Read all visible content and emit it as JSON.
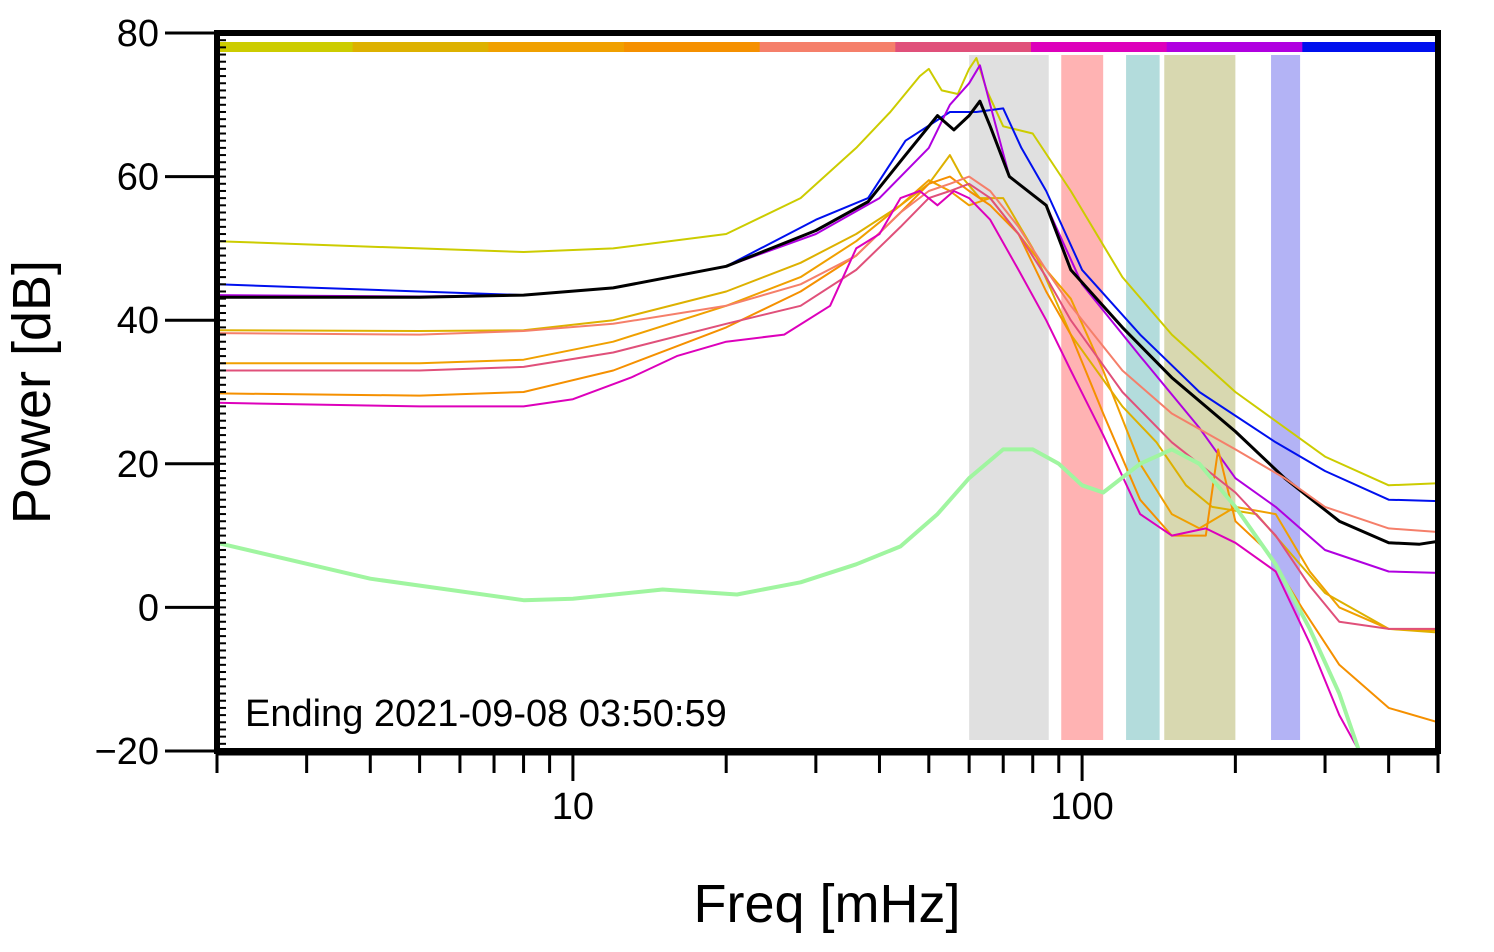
{
  "chart_data": {
    "type": "line",
    "title": "",
    "xlabel": "Freq [mHz]",
    "ylabel": "Power [dB]",
    "xscale": "log",
    "xlim": [
      2,
      500
    ],
    "ylim": [
      -20,
      80
    ],
    "x_major_ticks": [
      10,
      100
    ],
    "x_major_tick_labels": [
      "10",
      "100"
    ],
    "y_ticks": [
      -20,
      0,
      20,
      40,
      60,
      80
    ],
    "y_tick_labels": [
      "−20",
      "0",
      "20",
      "40",
      "60",
      "80"
    ],
    "annotation": "Ending 2021-09-08 03:50:59",
    "colors": {
      "lime": "#cccc00",
      "gold": "#ddb100",
      "orange1": "#f0a000",
      "orange2": "#f59000",
      "salmon": "#f57f6a",
      "rose": "#e0507a",
      "magenta": "#dd00bb",
      "purple": "#b000e0",
      "blue": "#0010ee",
      "black": "#000000",
      "noise": "#a0f5a0"
    },
    "time_bar": [
      "#cccc00",
      "#ddb100",
      "#f0a000",
      "#f59000",
      "#f57f6a",
      "#e0507a",
      "#dd00bb",
      "#b000e0",
      "#0010ee"
    ],
    "bands": [
      {
        "x0": 60,
        "x1": 86,
        "color": "#e0e0e0"
      },
      {
        "x0": 91,
        "x1": 110,
        "color": "#ffb3b3"
      },
      {
        "x0": 122,
        "x1": 142,
        "color": "#b3dcdc"
      },
      {
        "x0": 145,
        "x1": 200,
        "color": "#d8d8b0"
      },
      {
        "x0": 235,
        "x1": 268,
        "color": "#b3b3f5"
      }
    ],
    "series": [
      {
        "name": "lime",
        "color": "#cccc00",
        "width": 2,
        "points": [
          [
            2,
            51
          ],
          [
            5,
            50
          ],
          [
            8,
            49.5
          ],
          [
            12,
            50
          ],
          [
            20,
            52
          ],
          [
            28,
            57
          ],
          [
            36,
            64
          ],
          [
            42,
            69
          ],
          [
            48,
            74
          ],
          [
            50,
            75
          ],
          [
            53,
            72
          ],
          [
            57,
            71.5
          ],
          [
            60,
            75
          ],
          [
            62,
            76.5
          ],
          [
            65,
            72
          ],
          [
            70,
            67
          ],
          [
            80,
            66
          ],
          [
            95,
            58
          ],
          [
            120,
            46
          ],
          [
            150,
            38
          ],
          [
            200,
            30
          ],
          [
            300,
            21
          ],
          [
            400,
            17
          ],
          [
            500,
            17.3
          ]
        ]
      },
      {
        "name": "blue",
        "color": "#0010ee",
        "width": 2,
        "points": [
          [
            2,
            45
          ],
          [
            5,
            44
          ],
          [
            8,
            43.5
          ],
          [
            12,
            44.5
          ],
          [
            20,
            47.5
          ],
          [
            30,
            54
          ],
          [
            38,
            57
          ],
          [
            45,
            65
          ],
          [
            55,
            69
          ],
          [
            62,
            69
          ],
          [
            70,
            69.5
          ],
          [
            76,
            64
          ],
          [
            85,
            58
          ],
          [
            100,
            47
          ],
          [
            130,
            38
          ],
          [
            170,
            30
          ],
          [
            240,
            23
          ],
          [
            300,
            19
          ],
          [
            400,
            15
          ],
          [
            500,
            14.8
          ]
        ]
      },
      {
        "name": "purple",
        "color": "#b000e0",
        "width": 2,
        "points": [
          [
            2,
            43.5
          ],
          [
            5,
            43.3
          ],
          [
            8,
            43.5
          ],
          [
            12,
            44.5
          ],
          [
            20,
            47.5
          ],
          [
            30,
            52
          ],
          [
            40,
            57
          ],
          [
            50,
            64
          ],
          [
            55,
            70
          ],
          [
            60,
            73
          ],
          [
            63,
            75.5
          ],
          [
            66,
            70
          ],
          [
            72,
            60
          ],
          [
            85,
            56
          ],
          [
            100,
            45
          ],
          [
            130,
            35
          ],
          [
            170,
            25
          ],
          [
            200,
            18
          ],
          [
            240,
            14
          ],
          [
            300,
            8
          ],
          [
            400,
            5
          ],
          [
            500,
            4.8
          ]
        ]
      },
      {
        "name": "black",
        "color": "#000000",
        "width": 3,
        "points": [
          [
            2,
            43.2
          ],
          [
            5,
            43.2
          ],
          [
            8,
            43.5
          ],
          [
            12,
            44.5
          ],
          [
            20,
            47.5
          ],
          [
            30,
            52.5
          ],
          [
            38,
            56.5
          ],
          [
            45,
            63
          ],
          [
            52,
            68.5
          ],
          [
            56,
            66.5
          ],
          [
            60,
            68.5
          ],
          [
            63,
            70.5
          ],
          [
            66,
            67
          ],
          [
            72,
            60
          ],
          [
            85,
            56
          ],
          [
            95,
            47
          ],
          [
            120,
            39
          ],
          [
            150,
            32
          ],
          [
            200,
            24.5
          ],
          [
            250,
            18
          ],
          [
            320,
            12
          ],
          [
            400,
            9
          ],
          [
            460,
            8.8
          ],
          [
            500,
            9.2
          ]
        ]
      },
      {
        "name": "gold",
        "color": "#ddb100",
        "width": 2,
        "points": [
          [
            2,
            38.6
          ],
          [
            5,
            38.5
          ],
          [
            8,
            38.6
          ],
          [
            12,
            40
          ],
          [
            20,
            44
          ],
          [
            28,
            48
          ],
          [
            36,
            52
          ],
          [
            44,
            56
          ],
          [
            50,
            59
          ],
          [
            55,
            63
          ],
          [
            58,
            60
          ],
          [
            63,
            57
          ],
          [
            70,
            57
          ],
          [
            80,
            50
          ],
          [
            95,
            38
          ],
          [
            120,
            28
          ],
          [
            140,
            23
          ],
          [
            160,
            17
          ],
          [
            180,
            14
          ],
          [
            220,
            13
          ],
          [
            300,
            2
          ],
          [
            400,
            -3
          ],
          [
            500,
            -3.5
          ]
        ]
      },
      {
        "name": "orange1",
        "color": "#f0a000",
        "width": 2,
        "points": [
          [
            2,
            34
          ],
          [
            5,
            34
          ],
          [
            8,
            34.5
          ],
          [
            12,
            37
          ],
          [
            20,
            42
          ],
          [
            28,
            46
          ],
          [
            36,
            51
          ],
          [
            44,
            56
          ],
          [
            50,
            59.5
          ],
          [
            55,
            58
          ],
          [
            60,
            56
          ],
          [
            66,
            57
          ],
          [
            75,
            52
          ],
          [
            85,
            47
          ],
          [
            95,
            43
          ],
          [
            110,
            33
          ],
          [
            130,
            20
          ],
          [
            150,
            13
          ],
          [
            170,
            11
          ],
          [
            200,
            14
          ],
          [
            240,
            13
          ],
          [
            280,
            5
          ],
          [
            320,
            0
          ],
          [
            400,
            -3
          ],
          [
            500,
            -3.2
          ]
        ]
      },
      {
        "name": "orange2",
        "color": "#f59000",
        "width": 2,
        "points": [
          [
            2,
            29.8
          ],
          [
            5,
            29.5
          ],
          [
            8,
            30
          ],
          [
            12,
            33
          ],
          [
            20,
            39
          ],
          [
            28,
            44
          ],
          [
            36,
            49
          ],
          [
            44,
            55
          ],
          [
            50,
            59
          ],
          [
            55,
            60
          ],
          [
            60,
            58
          ],
          [
            66,
            56
          ],
          [
            75,
            52
          ],
          [
            85,
            44
          ],
          [
            95,
            38
          ],
          [
            110,
            27
          ],
          [
            130,
            15
          ],
          [
            150,
            10
          ],
          [
            175,
            10
          ],
          [
            185,
            22
          ],
          [
            200,
            12
          ],
          [
            230,
            8
          ],
          [
            270,
            0
          ],
          [
            320,
            -8
          ],
          [
            400,
            -14
          ],
          [
            500,
            -16
          ]
        ]
      },
      {
        "name": "salmon",
        "color": "#f57f6a",
        "width": 2,
        "points": [
          [
            2,
            38.2
          ],
          [
            5,
            38
          ],
          [
            8,
            38.5
          ],
          [
            12,
            39.5
          ],
          [
            20,
            42
          ],
          [
            28,
            45
          ],
          [
            36,
            49
          ],
          [
            44,
            55
          ],
          [
            50,
            58
          ],
          [
            55,
            59
          ],
          [
            60,
            60
          ],
          [
            66,
            58
          ],
          [
            75,
            53
          ],
          [
            85,
            47
          ],
          [
            95,
            42
          ],
          [
            120,
            33
          ],
          [
            150,
            27
          ],
          [
            200,
            22
          ],
          [
            250,
            18
          ],
          [
            300,
            14
          ],
          [
            400,
            11
          ],
          [
            500,
            10.5
          ]
        ]
      },
      {
        "name": "rose",
        "color": "#e0507a",
        "width": 2,
        "points": [
          [
            2,
            33
          ],
          [
            5,
            33
          ],
          [
            8,
            33.5
          ],
          [
            12,
            35.5
          ],
          [
            20,
            39.5
          ],
          [
            28,
            42
          ],
          [
            36,
            47
          ],
          [
            44,
            53
          ],
          [
            50,
            57
          ],
          [
            55,
            58
          ],
          [
            60,
            59
          ],
          [
            66,
            57
          ],
          [
            75,
            52
          ],
          [
            85,
            46
          ],
          [
            95,
            40
          ],
          [
            120,
            30
          ],
          [
            150,
            23
          ],
          [
            200,
            16
          ],
          [
            240,
            10
          ],
          [
            280,
            3
          ],
          [
            320,
            -2
          ],
          [
            400,
            -3
          ],
          [
            500,
            -3
          ]
        ]
      },
      {
        "name": "magenta",
        "color": "#dd00bb",
        "width": 2,
        "points": [
          [
            2,
            28.5
          ],
          [
            5,
            28
          ],
          [
            8,
            28
          ],
          [
            10,
            29
          ],
          [
            13,
            32
          ],
          [
            16,
            35
          ],
          [
            20,
            37
          ],
          [
            26,
            38
          ],
          [
            32,
            42
          ],
          [
            36,
            50
          ],
          [
            40,
            52
          ],
          [
            44,
            57
          ],
          [
            48,
            58
          ],
          [
            52,
            56
          ],
          [
            56,
            58
          ],
          [
            60,
            57
          ],
          [
            66,
            54
          ],
          [
            75,
            47
          ],
          [
            85,
            40
          ],
          [
            95,
            33
          ],
          [
            110,
            24
          ],
          [
            130,
            13
          ],
          [
            150,
            10
          ],
          [
            175,
            11
          ],
          [
            200,
            9
          ],
          [
            240,
            5
          ],
          [
            280,
            -5
          ],
          [
            320,
            -15
          ],
          [
            350,
            -20
          ]
        ]
      },
      {
        "name": "noise",
        "color": "#a0f5a0",
        "width": 4,
        "points": [
          [
            2,
            9
          ],
          [
            4,
            4
          ],
          [
            8,
            1
          ],
          [
            10,
            1.2
          ],
          [
            15,
            2.5
          ],
          [
            21,
            1.8
          ],
          [
            28,
            3.5
          ],
          [
            36,
            6
          ],
          [
            44,
            8.5
          ],
          [
            52,
            13
          ],
          [
            60,
            18
          ],
          [
            70,
            22
          ],
          [
            80,
            22
          ],
          [
            90,
            20
          ],
          [
            100,
            17
          ],
          [
            110,
            16
          ],
          [
            130,
            20
          ],
          [
            150,
            22
          ],
          [
            170,
            20
          ],
          [
            200,
            14
          ],
          [
            240,
            6
          ],
          [
            280,
            -3
          ],
          [
            320,
            -12
          ],
          [
            350,
            -20
          ]
        ]
      }
    ]
  }
}
